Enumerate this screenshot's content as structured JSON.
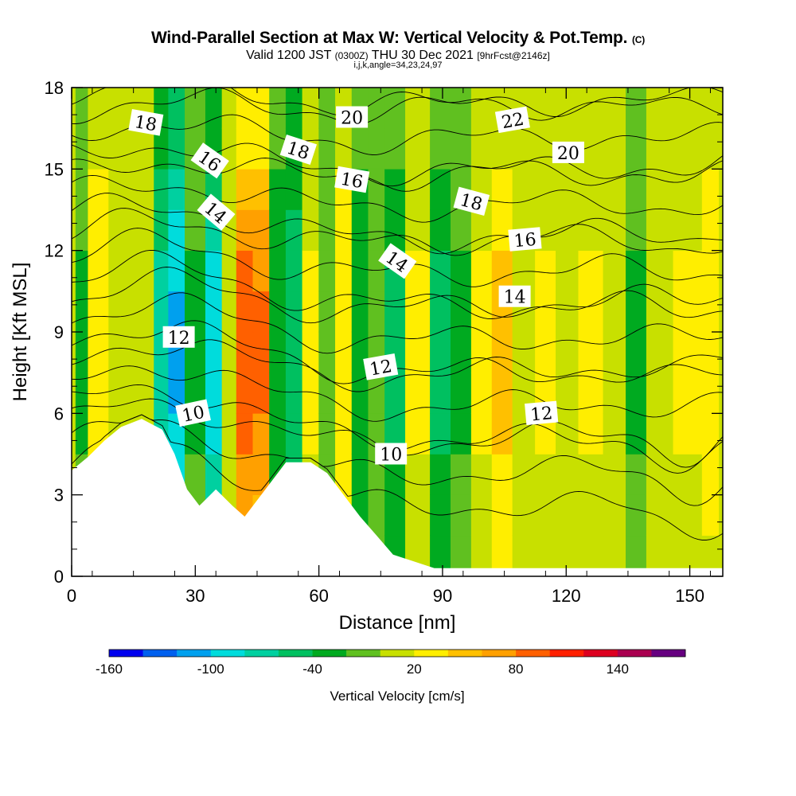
{
  "header": {
    "title_main": "Wind-Parallel Section at Max W: Vertical Velocity & Pot.Temp.",
    "title_mark": "(C)",
    "valid_prefix": "Valid 1200 JST",
    "valid_utc": "(0300Z)",
    "valid_date": "THU 30 Dec 2021",
    "forecast": "[9hrFcst@2146z]",
    "indices": "i,j,k,angle=34,23,24,97"
  },
  "chart_data": {
    "type": "heatmap",
    "xlabel": "Distance [nm]",
    "ylabel": "Height [Kft MSL]",
    "xlim": [
      0,
      158
    ],
    "ylim": [
      0,
      18
    ],
    "x_ticks": [
      0,
      30,
      60,
      90,
      120,
      150
    ],
    "y_ticks": [
      0,
      3,
      6,
      9,
      12,
      15,
      18
    ],
    "colorbar": {
      "label": "Vertical Velocity [cm/s]",
      "tick_labels": [
        -160,
        -100,
        -40,
        20,
        80,
        140
      ],
      "levels": [
        -160,
        -140,
        -120,
        -100,
        -80,
        -60,
        -40,
        -20,
        0,
        20,
        40,
        60,
        80,
        100,
        120,
        140,
        160
      ],
      "colors": [
        "#0000ee",
        "#0060ee",
        "#00a0ee",
        "#00dcdc",
        "#00d0a0",
        "#00c060",
        "#00aa20",
        "#60c020",
        "#c8e000",
        "#ffee00",
        "#ffc000",
        "#ffa000",
        "#ff6000",
        "#ff2000",
        "#dd0020",
        "#aa0050",
        "#660080"
      ]
    },
    "terrain_profile_kft": [
      [
        0,
        3.9
      ],
      [
        4,
        4.4
      ],
      [
        8,
        5.0
      ],
      [
        12,
        5.5
      ],
      [
        17,
        5.8
      ],
      [
        22,
        5.4
      ],
      [
        25,
        4.5
      ],
      [
        28,
        3.2
      ],
      [
        31,
        2.6
      ],
      [
        35,
        3.2
      ],
      [
        39,
        2.6
      ],
      [
        42,
        2.2
      ],
      [
        45,
        2.8
      ],
      [
        49,
        3.6
      ],
      [
        52,
        4.2
      ],
      [
        58,
        4.2
      ],
      [
        62,
        3.8
      ],
      [
        66,
        3.0
      ],
      [
        70,
        2.2
      ],
      [
        74,
        1.5
      ],
      [
        78,
        0.8
      ],
      [
        82,
        0.6
      ],
      [
        88,
        0.3
      ],
      [
        158,
        0.3
      ]
    ],
    "vertical_velocity_columns": [
      {
        "x": 2,
        "w": -20
      },
      {
        "x": 6,
        "w": 30
      },
      {
        "x": 12,
        "w": 10
      },
      {
        "x": 18,
        "w": 10
      },
      {
        "x": 22,
        "w": -60
      },
      {
        "x": 25,
        "w": -90
      },
      {
        "x": 30,
        "w": -20
      },
      {
        "x": 35,
        "w": -80
      },
      {
        "x": 38,
        "w": 0
      },
      {
        "x": 42,
        "w": 80
      },
      {
        "x": 46,
        "w": 70
      },
      {
        "x": 50,
        "w": -30
      },
      {
        "x": 54,
        "w": -50
      },
      {
        "x": 58,
        "w": 20
      },
      {
        "x": 62,
        "w": -10
      },
      {
        "x": 66,
        "w": 30
      },
      {
        "x": 70,
        "w": -30
      },
      {
        "x": 74,
        "w": -10
      },
      {
        "x": 78,
        "w": -40
      },
      {
        "x": 84,
        "w": 20
      },
      {
        "x": 90,
        "w": -40
      },
      {
        "x": 94,
        "w": -20
      },
      {
        "x": 100,
        "w": 20
      },
      {
        "x": 104,
        "w": 40
      },
      {
        "x": 110,
        "w": 0
      },
      {
        "x": 115,
        "w": 20
      },
      {
        "x": 120,
        "w": 0
      },
      {
        "x": 126,
        "w": 20
      },
      {
        "x": 132,
        "w": 0
      },
      {
        "x": 137,
        "w": -20
      },
      {
        "x": 142,
        "w": 10
      },
      {
        "x": 150,
        "w": 20
      },
      {
        "x": 156,
        "w": 30
      }
    ],
    "theta_contour_labels": [
      {
        "value": "18",
        "x": 18,
        "y": 16.7,
        "angle": 10
      },
      {
        "value": "16",
        "x": 33.5,
        "y": 15.3,
        "angle": 35
      },
      {
        "value": "14",
        "x": 35,
        "y": 13.4,
        "angle": 40
      },
      {
        "value": "12",
        "x": 26,
        "y": 8.8,
        "angle": 0
      },
      {
        "value": "10",
        "x": 29.5,
        "y": 6.0,
        "angle": -12
      },
      {
        "value": "18",
        "x": 55,
        "y": 15.7,
        "angle": 18
      },
      {
        "value": "20",
        "x": 68,
        "y": 16.9,
        "angle": 0
      },
      {
        "value": "16",
        "x": 68,
        "y": 14.6,
        "angle": 10
      },
      {
        "value": "14",
        "x": 79,
        "y": 11.6,
        "angle": 35
      },
      {
        "value": "12",
        "x": 75,
        "y": 7.7,
        "angle": -10
      },
      {
        "value": "10",
        "x": 77.5,
        "y": 4.5,
        "angle": 0
      },
      {
        "value": "18",
        "x": 97,
        "y": 13.8,
        "angle": 15
      },
      {
        "value": "22",
        "x": 107,
        "y": 16.8,
        "angle": -10
      },
      {
        "value": "20",
        "x": 120.5,
        "y": 15.6,
        "angle": 0
      },
      {
        "value": "16",
        "x": 110,
        "y": 12.4,
        "angle": -5
      },
      {
        "value": "14",
        "x": 107.5,
        "y": 10.3,
        "angle": 0
      },
      {
        "value": "12",
        "x": 114,
        "y": 6.0,
        "angle": -5
      }
    ]
  }
}
